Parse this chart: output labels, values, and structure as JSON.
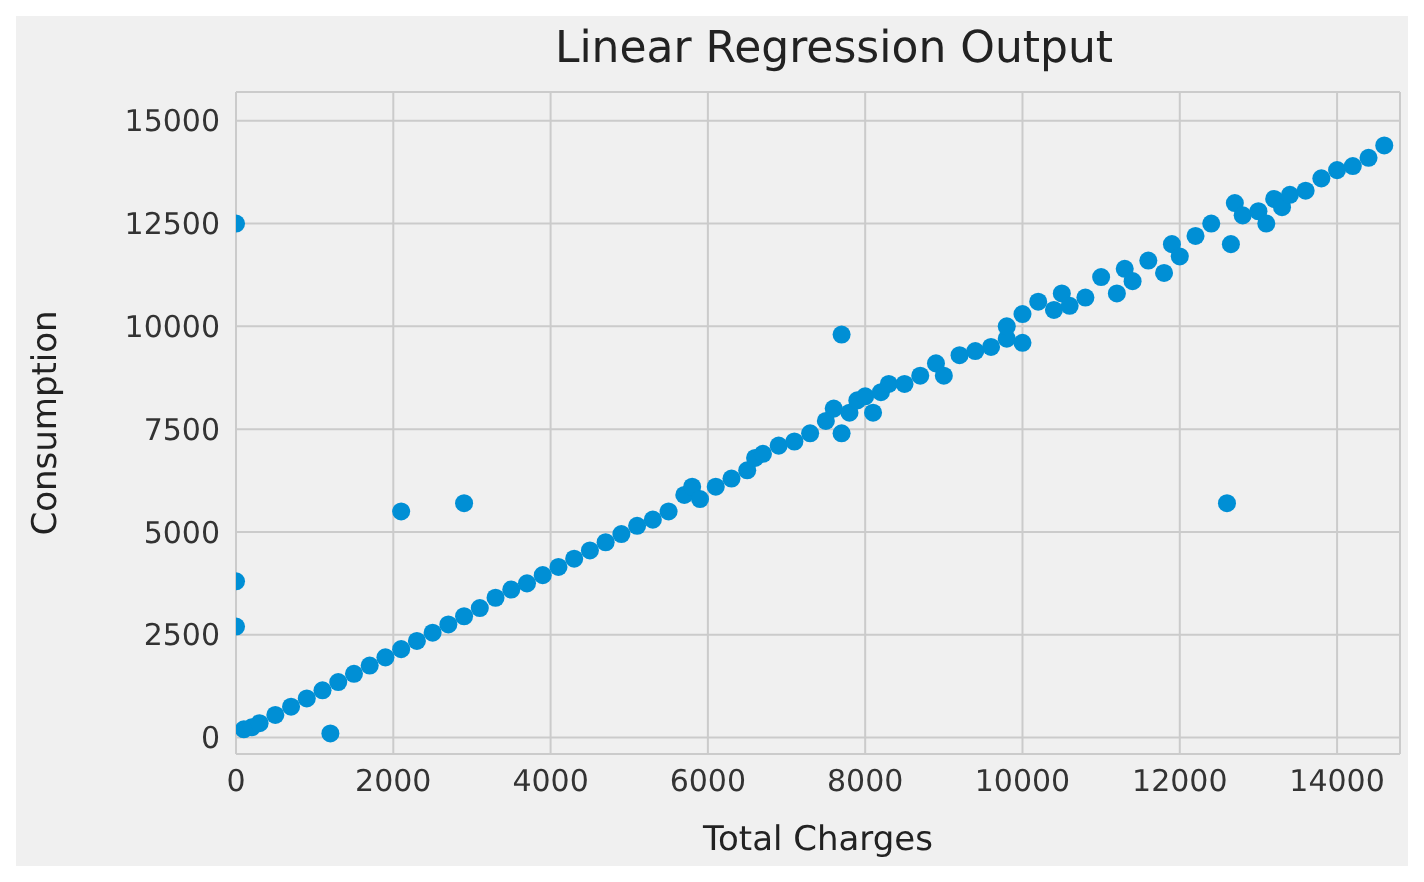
{
  "chart_data": {
    "type": "scatter",
    "title": "Linear Regression Output",
    "xlabel": "Total Charges",
    "ylabel": "Consumption",
    "xlim": [
      0,
      14800
    ],
    "ylim": [
      -400,
      15700
    ],
    "xticks": [
      0,
      2000,
      4000,
      6000,
      8000,
      10000,
      12000,
      14000
    ],
    "yticks": [
      0,
      2500,
      5000,
      7500,
      10000,
      12500,
      15000
    ],
    "grid": true,
    "marker": "circle",
    "series": [
      {
        "color": "#008fd5",
        "x": [
          0,
          0,
          0,
          100,
          200,
          300,
          500,
          700,
          900,
          1100,
          1200,
          1300,
          1500,
          1700,
          1900,
          2100,
          2100,
          2300,
          2500,
          2700,
          2900,
          2900,
          3100,
          3300,
          3500,
          3700,
          3900,
          4100,
          4300,
          4500,
          4700,
          4900,
          5100,
          5300,
          5500,
          5700,
          5800,
          5900,
          6100,
          6300,
          6500,
          6600,
          6700,
          6900,
          7100,
          7300,
          7500,
          7600,
          7700,
          7700,
          7800,
          7900,
          8000,
          8100,
          8200,
          8300,
          8500,
          8700,
          8900,
          9000,
          9200,
          9400,
          9600,
          9800,
          9800,
          10000,
          10000,
          10200,
          10400,
          10500,
          10600,
          10800,
          11000,
          11200,
          11300,
          11400,
          11600,
          11800,
          11900,
          12000,
          12200,
          12400,
          12600,
          12650,
          12700,
          12800,
          13000,
          13100,
          13200,
          13300,
          13400,
          13600,
          13800,
          14000,
          14200,
          14400,
          14600
        ],
        "values": [
          12500,
          3800,
          2700,
          200,
          250,
          350,
          550,
          750,
          950,
          1150,
          100,
          1350,
          1550,
          1750,
          1950,
          2150,
          5500,
          2350,
          2550,
          2750,
          2950,
          5700,
          3150,
          3400,
          3600,
          3750,
          3950,
          4150,
          4350,
          4550,
          4750,
          4950,
          5150,
          5300,
          5500,
          5900,
          6100,
          5800,
          6100,
          6300,
          6500,
          6800,
          6900,
          7100,
          7200,
          7400,
          7700,
          8000,
          7400,
          9800,
          7900,
          8200,
          8300,
          7900,
          8400,
          8600,
          8600,
          8800,
          9100,
          8800,
          9300,
          9400,
          9500,
          9700,
          10000,
          10300,
          9600,
          10600,
          10400,
          10800,
          10500,
          10700,
          11200,
          10800,
          11400,
          11100,
          11600,
          11300,
          12000,
          11700,
          12200,
          12500,
          5700,
          12000,
          13000,
          12700,
          12800,
          12500,
          13100,
          12900,
          13200,
          13300,
          13600,
          13800,
          13900,
          14100,
          14400
        ]
      }
    ]
  }
}
